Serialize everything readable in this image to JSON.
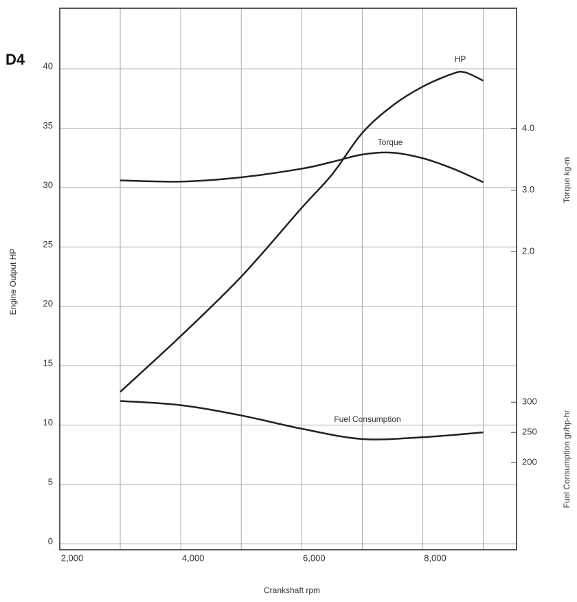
{
  "chart_data": {
    "type": "line",
    "label": "D4",
    "xlabel": "Crankshaft  rpm",
    "ylabel": "Engine Output  HP",
    "y2label": "Torque  kg-m",
    "y3label": "Fuel Consumption  gr/hp-hr",
    "xlim": [
      2000,
      9550
    ],
    "xticks": [
      {
        "value": 2000,
        "label": "2,000"
      },
      {
        "value": 4000,
        "label": "4,000"
      },
      {
        "value": 6000,
        "label": "6,000"
      },
      {
        "value": 8000,
        "label": "8,000"
      }
    ],
    "xminor": [
      3000,
      5000,
      7000,
      9000
    ],
    "ylim": [
      -0.5,
      45.1
    ],
    "yticks": [
      0,
      5,
      10,
      15,
      20,
      25,
      30,
      35,
      40
    ],
    "y2lim": [
      -2.85,
      5.96
    ],
    "y2ticks": [
      {
        "value": 2,
        "label": "2.0"
      },
      {
        "value": 3,
        "label": "3.0"
      },
      {
        "value": 4,
        "label": "4.0"
      }
    ],
    "y3lim": [
      55.7,
      952
    ],
    "y3ticks": [
      200,
      250,
      300
    ],
    "grid": true,
    "series": [
      {
        "name": "HP",
        "axis": "y",
        "color": "#222",
        "x": [
          3000,
          4000,
          5000,
          6000,
          6500,
          7000,
          7500,
          8000,
          8500,
          8700,
          9000
        ],
        "values": [
          12.8,
          17.5,
          22.5,
          28.3,
          31.1,
          34.6,
          36.9,
          38.5,
          39.6,
          39.7,
          39.0
        ]
      },
      {
        "name": "Torque",
        "axis": "y2",
        "color": "#222",
        "x": [
          3000,
          4000,
          5000,
          6000,
          6500,
          7000,
          7500,
          8000,
          8500,
          9000
        ],
        "values": [
          3.16,
          3.14,
          3.21,
          3.35,
          3.46,
          3.58,
          3.61,
          3.52,
          3.35,
          3.13
        ]
      },
      {
        "name": "Fuel Consumption",
        "axis": "y3",
        "color": "#222",
        "x": [
          3000,
          4000,
          5000,
          6000,
          7000,
          8000,
          9000
        ],
        "values": [
          302,
          295,
          278,
          256,
          239,
          242,
          250
        ]
      }
    ]
  }
}
